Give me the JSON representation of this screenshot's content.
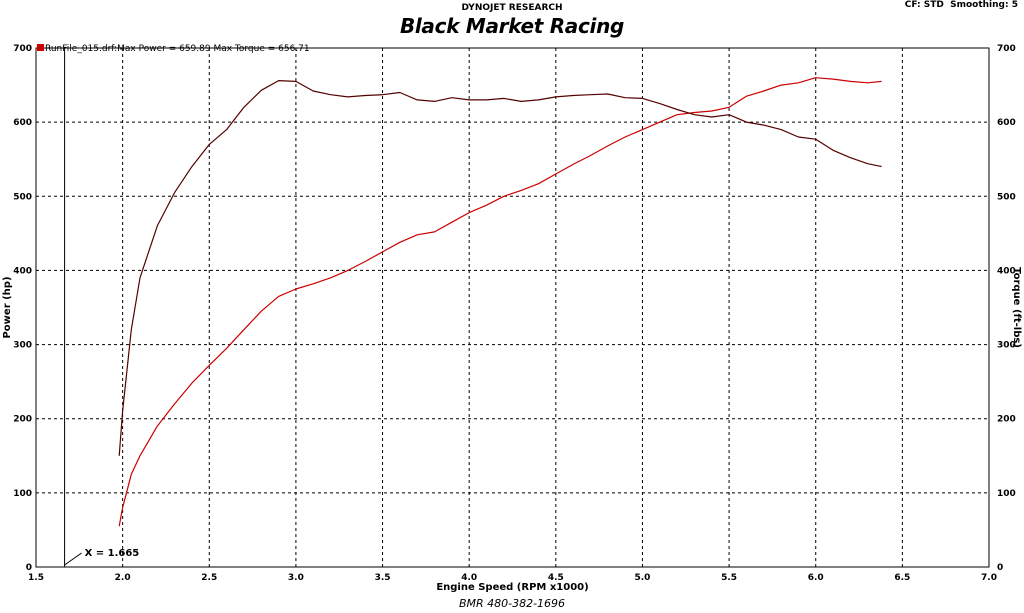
{
  "header": {
    "company": "DYNOJET RESEARCH",
    "cf_label": "CF: STD",
    "smoothing_label": "Smoothing: 5",
    "brand_title": "Black Market Racing"
  },
  "footer": {
    "phone": "BMR 480-382-1696"
  },
  "chart_data": {
    "type": "line",
    "title": "Black Market Racing",
    "xlabel": "Engine Speed (RPM x1000)",
    "ylabel": "Power (hp)",
    "y2label": "Torque (ft-lbs)",
    "xlim": [
      1.5,
      7.0
    ],
    "ylim": [
      0,
      700
    ],
    "y2lim": [
      0,
      700
    ],
    "xticks": [
      "1.5",
      "2.0",
      "2.5",
      "3.0",
      "3.5",
      "4.0",
      "4.5",
      "5.0",
      "5.5",
      "6.0",
      "6.5",
      "7.0"
    ],
    "yticks": [
      "0",
      "100",
      "200",
      "300",
      "400",
      "500",
      "600",
      "700"
    ],
    "grid": true,
    "legend": {
      "swatch_color": "#cc0000",
      "text": "RunFile_015.drf:Max Power = 659.89    Max Torque = 656.71"
    },
    "cursor": {
      "label": "X = 1.665",
      "x": 1.665
    },
    "series": [
      {
        "axis": "left",
        "color": "#cc0000",
        "x": [
          1.98,
          2.0,
          2.05,
          2.1,
          2.2,
          2.3,
          2.4,
          2.5,
          2.6,
          2.7,
          2.8,
          2.9,
          3.0,
          3.1,
          3.2,
          3.3,
          3.4,
          3.5,
          3.6,
          3.7,
          3.8,
          3.9,
          4.0,
          4.1,
          4.2,
          4.3,
          4.4,
          4.5,
          4.6,
          4.7,
          4.8,
          4.9,
          5.0,
          5.1,
          5.2,
          5.3,
          5.4,
          5.5,
          5.6,
          5.7,
          5.8,
          5.9,
          6.0,
          6.1,
          6.2,
          6.3,
          6.38
        ],
        "values": [
          55,
          80,
          125,
          150,
          190,
          220,
          248,
          272,
          295,
          320,
          345,
          365,
          375,
          382,
          390,
          400,
          412,
          425,
          438,
          448,
          452,
          465,
          478,
          488,
          500,
          508,
          517,
          530,
          543,
          555,
          568,
          580,
          590,
          600,
          610,
          613,
          615,
          620,
          635,
          642,
          650,
          653,
          660,
          658,
          655,
          653,
          655
        ]
      },
      {
        "axis": "right",
        "color": "#550000",
        "x": [
          1.98,
          2.0,
          2.05,
          2.1,
          2.2,
          2.3,
          2.4,
          2.5,
          2.6,
          2.7,
          2.8,
          2.9,
          3.0,
          3.1,
          3.2,
          3.3,
          3.4,
          3.5,
          3.6,
          3.7,
          3.8,
          3.9,
          4.0,
          4.1,
          4.2,
          4.3,
          4.4,
          4.5,
          4.6,
          4.7,
          4.8,
          4.9,
          5.0,
          5.1,
          5.2,
          5.3,
          5.4,
          5.5,
          5.6,
          5.7,
          5.8,
          5.9,
          6.0,
          6.1,
          6.2,
          6.3,
          6.38
        ],
        "values": [
          150,
          210,
          320,
          390,
          460,
          505,
          540,
          570,
          590,
          620,
          643,
          656,
          655,
          642,
          637,
          634,
          636,
          637,
          640,
          630,
          628,
          633,
          630,
          630,
          632,
          628,
          630,
          634,
          636,
          637,
          638,
          633,
          632,
          625,
          617,
          610,
          607,
          610,
          600,
          596,
          590,
          580,
          577,
          562,
          552,
          544,
          540
        ]
      }
    ]
  }
}
